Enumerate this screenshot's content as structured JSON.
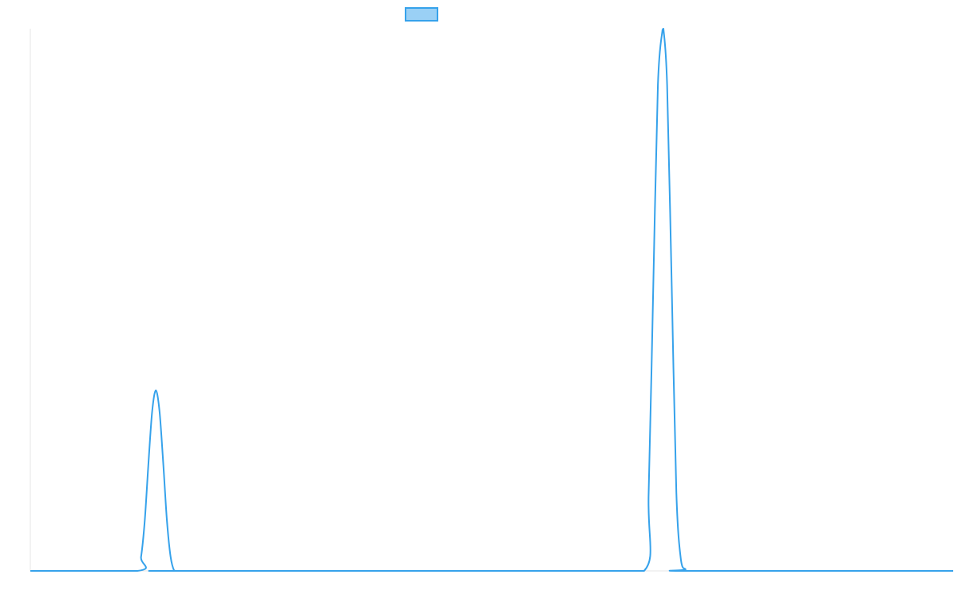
{
  "chart_data": {
    "type": "line",
    "title": "",
    "xlabel": "",
    "ylabel": "",
    "x_range": [
      0,
      100
    ],
    "ylim": [
      0,
      100
    ],
    "grid": false,
    "legend_placement": "top-center",
    "series": [
      {
        "name": "",
        "color": "#36a2eb",
        "fill": "#9ad0f5",
        "x": [
          0,
          11.6,
          12.0,
          12.4,
          12.8,
          13.2,
          13.6,
          14.0,
          14.4,
          14.8,
          15.2,
          15.6,
          16.0,
          58.8,
          66.5,
          67.0,
          67.5,
          68.0,
          68.5,
          68.6,
          69.0,
          69.5,
          70.0,
          70.5,
          71.0,
          71.4,
          100
        ],
        "y": [
          0,
          0,
          2.6,
          9.3,
          19.9,
          29.4,
          33.3,
          29.4,
          19.9,
          9.3,
          2.6,
          0,
          0,
          0,
          0,
          14.5,
          52.5,
          89.6,
          99.8,
          100,
          89.6,
          52.5,
          14.5,
          2.0,
          0.3,
          0,
          0
        ]
      }
    ]
  }
}
